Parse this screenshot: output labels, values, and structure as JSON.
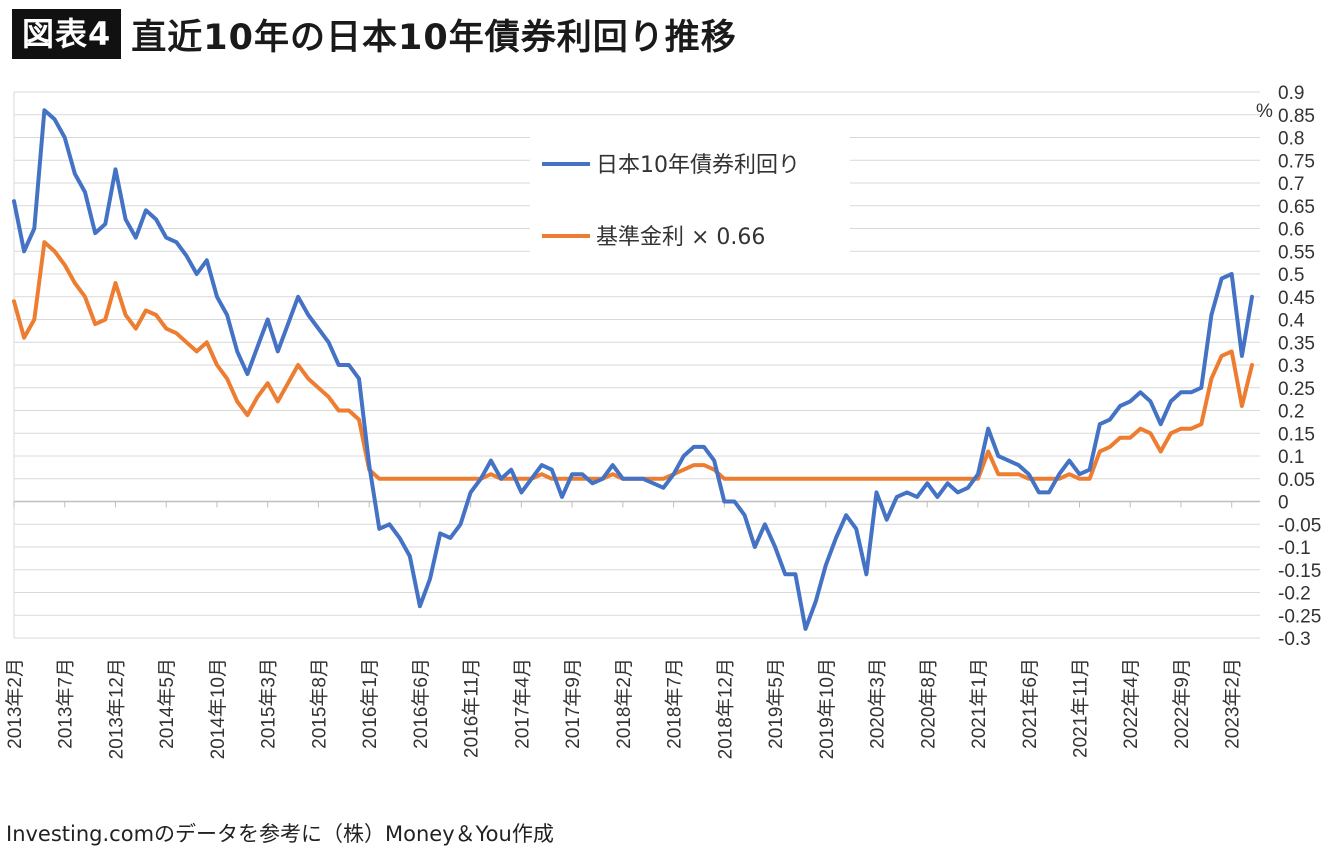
{
  "header": {
    "badge": "図表4",
    "title": "直近10年の日本10年債券利回り推移"
  },
  "source": "Investing.comのデータを参考に（株）Money＆You作成",
  "chart_data": {
    "type": "line",
    "unit_label": "%",
    "ylim": [
      -0.3,
      0.9
    ],
    "y_ticks": [
      "0.9",
      "0.85",
      "0.8",
      "0.75",
      "0.7",
      "0.65",
      "0.6",
      "0.55",
      "0.5",
      "0.45",
      "0.4",
      "0.35",
      "0.3",
      "0.25",
      "0.2",
      "0.15",
      "0.1",
      "0.05",
      "0",
      "-0.05",
      "-0.1",
      "-0.15",
      "-0.2",
      "-0.25",
      "-0.3"
    ],
    "x_tick_labels": [
      "2013年2月",
      "2013年7月",
      "2013年12月",
      "2014年5月",
      "2014年10月",
      "2015年3月",
      "2015年8月",
      "2016年1月",
      "2016年6月",
      "2016年11月",
      "2017年4月",
      "2017年9月",
      "2018年2月",
      "2018年7月",
      "2018年12月",
      "2019年5月",
      "2019年10月",
      "2020年3月",
      "2020年8月",
      "2021年1月",
      "2021年6月",
      "2021年11月",
      "2022年4月",
      "2022年9月",
      "2023年2月"
    ],
    "legend_position": "top-center",
    "grid": true,
    "series": [
      {
        "name": "日本10年債券利回り",
        "color": "#4472C4",
        "values": [
          0.66,
          0.55,
          0.6,
          0.86,
          0.84,
          0.8,
          0.72,
          0.68,
          0.59,
          0.61,
          0.73,
          0.62,
          0.58,
          0.64,
          0.62,
          0.58,
          0.57,
          0.54,
          0.5,
          0.53,
          0.45,
          0.41,
          0.33,
          0.28,
          0.34,
          0.4,
          0.33,
          0.39,
          0.45,
          0.41,
          0.38,
          0.35,
          0.3,
          0.3,
          0.27,
          0.08,
          -0.06,
          -0.05,
          -0.08,
          -0.12,
          -0.23,
          -0.17,
          -0.07,
          -0.08,
          -0.05,
          0.02,
          0.05,
          0.09,
          0.05,
          0.07,
          0.02,
          0.05,
          0.08,
          0.07,
          0.01,
          0.06,
          0.06,
          0.04,
          0.05,
          0.08,
          0.05,
          0.05,
          0.05,
          0.04,
          0.03,
          0.06,
          0.1,
          0.12,
          0.12,
          0.09,
          0.0,
          0.0,
          -0.03,
          -0.1,
          -0.05,
          -0.1,
          -0.16,
          -0.16,
          -0.28,
          -0.22,
          -0.14,
          -0.08,
          -0.03,
          -0.06,
          -0.16,
          0.02,
          -0.04,
          0.01,
          0.02,
          0.01,
          0.04,
          0.01,
          0.04,
          0.02,
          0.03,
          0.06,
          0.16,
          0.1,
          0.09,
          0.08,
          0.06,
          0.02,
          0.02,
          0.06,
          0.09,
          0.06,
          0.07,
          0.17,
          0.18,
          0.21,
          0.22,
          0.24,
          0.22,
          0.17,
          0.22,
          0.24,
          0.24,
          0.25,
          0.41,
          0.49,
          0.5,
          0.32,
          0.45
        ]
      },
      {
        "name": "基準金利 × 0.66",
        "color": "#ED7D31",
        "values": [
          0.44,
          0.36,
          0.4,
          0.57,
          0.55,
          0.52,
          0.48,
          0.45,
          0.39,
          0.4,
          0.48,
          0.41,
          0.38,
          0.42,
          0.41,
          0.38,
          0.37,
          0.35,
          0.33,
          0.35,
          0.3,
          0.27,
          0.22,
          0.19,
          0.23,
          0.26,
          0.22,
          0.26,
          0.3,
          0.27,
          0.25,
          0.23,
          0.2,
          0.2,
          0.18,
          0.07,
          0.05,
          0.05,
          0.05,
          0.05,
          0.05,
          0.05,
          0.05,
          0.05,
          0.05,
          0.05,
          0.05,
          0.06,
          0.05,
          0.05,
          0.05,
          0.05,
          0.06,
          0.05,
          0.05,
          0.05,
          0.05,
          0.05,
          0.05,
          0.06,
          0.05,
          0.05,
          0.05,
          0.05,
          0.05,
          0.06,
          0.07,
          0.08,
          0.08,
          0.07,
          0.05,
          0.05,
          0.05,
          0.05,
          0.05,
          0.05,
          0.05,
          0.05,
          0.05,
          0.05,
          0.05,
          0.05,
          0.05,
          0.05,
          0.05,
          0.05,
          0.05,
          0.05,
          0.05,
          0.05,
          0.05,
          0.05,
          0.05,
          0.05,
          0.05,
          0.05,
          0.11,
          0.06,
          0.06,
          0.06,
          0.05,
          0.05,
          0.05,
          0.05,
          0.06,
          0.05,
          0.05,
          0.11,
          0.12,
          0.14,
          0.14,
          0.16,
          0.15,
          0.11,
          0.15,
          0.16,
          0.16,
          0.17,
          0.27,
          0.32,
          0.33,
          0.21,
          0.3
        ]
      }
    ]
  }
}
